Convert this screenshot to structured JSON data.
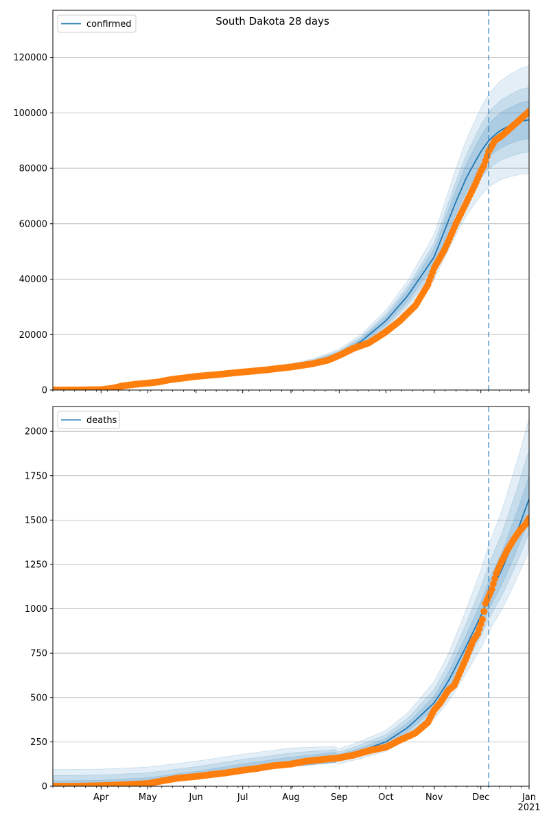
{
  "figure": {
    "title": "South Dakota 28 days"
  },
  "colors": {
    "model": "#1f77b4",
    "observed": "#ff7f0e",
    "band": "#1f77b4",
    "grid": "#b0b0b0"
  },
  "chart_data": [
    {
      "type": "line",
      "panel": "top",
      "title": "South Dakota 28 days",
      "legend": [
        "confirmed"
      ],
      "legend_position": "top-left",
      "grid": "horizontal",
      "xlim": [
        "2020-03-01",
        "2021-01-01"
      ],
      "ylim": [
        0,
        137000
      ],
      "yticks": [
        0,
        20000,
        40000,
        60000,
        80000,
        100000,
        120000
      ],
      "xticks": [
        {
          "date": "2020-04-01",
          "label": "Apr"
        },
        {
          "date": "2020-05-01",
          "label": "May"
        },
        {
          "date": "2020-06-01",
          "label": "Jun"
        },
        {
          "date": "2020-07-01",
          "label": "Jul"
        },
        {
          "date": "2020-08-01",
          "label": "Aug"
        },
        {
          "date": "2020-09-01",
          "label": "Sep"
        },
        {
          "date": "2020-10-01",
          "label": "Oct"
        },
        {
          "date": "2020-11-01",
          "label": "Nov"
        },
        {
          "date": "2020-12-01",
          "label": "Dec"
        },
        {
          "date": "2021-01-01",
          "label": "Jan\n2021"
        }
      ],
      "forecast_start": "2020-12-06",
      "series": [
        {
          "name": "confirmed",
          "role": "model",
          "x": [
            "2020-03-01",
            "2020-03-15",
            "2020-04-01",
            "2020-04-15",
            "2020-05-01",
            "2020-05-15",
            "2020-06-01",
            "2020-06-15",
            "2020-07-01",
            "2020-07-15",
            "2020-08-01",
            "2020-08-15",
            "2020-09-01",
            "2020-09-15",
            "2020-10-01",
            "2020-10-15",
            "2020-11-01",
            "2020-11-08",
            "2020-11-15",
            "2020-11-22",
            "2020-12-01",
            "2020-12-06",
            "2020-12-13",
            "2020-12-20",
            "2020-12-27",
            "2021-01-01"
          ],
          "y": [
            0,
            50,
            200,
            1500,
            2800,
            4000,
            5200,
            6000,
            6800,
            7500,
            8500,
            10000,
            13000,
            17500,
            25000,
            34000,
            48000,
            58000,
            68000,
            77000,
            86000,
            90000,
            93500,
            95500,
            97000,
            97500
          ],
          "bands": [
            {
              "lo_pct": [
                0.97,
                0.92,
                0.88,
                0.84,
                0.8
              ],
              "hi_pct": [
                1.03,
                1.08,
                1.12,
                1.16,
                1.2
              ]
            },
            {
              "lo_pct": [
                0.98,
                0.95,
                0.92,
                0.9,
                0.88
              ],
              "hi_pct": [
                1.02,
                1.05,
                1.08,
                1.1,
                1.12
              ]
            },
            {
              "lo_pct": [
                0.985,
                0.97,
                0.95,
                0.94,
                0.93
              ],
              "hi_pct": [
                1.015,
                1.03,
                1.05,
                1.06,
                1.07
              ]
            }
          ]
        },
        {
          "name": "observed",
          "role": "observed",
          "x": [
            "2020-03-01",
            "2020-03-15",
            "2020-04-01",
            "2020-04-08",
            "2020-04-15",
            "2020-04-22",
            "2020-05-01",
            "2020-05-08",
            "2020-05-15",
            "2020-05-22",
            "2020-06-01",
            "2020-06-15",
            "2020-07-01",
            "2020-07-15",
            "2020-08-01",
            "2020-08-15",
            "2020-08-25",
            "2020-09-01",
            "2020-09-10",
            "2020-09-20",
            "2020-10-01",
            "2020-10-10",
            "2020-10-20",
            "2020-10-28",
            "2020-11-01",
            "2020-11-08",
            "2020-11-15",
            "2020-11-22",
            "2020-11-28",
            "2020-12-01",
            "2020-12-03",
            "2020-12-06",
            "2020-12-10",
            "2020-12-15",
            "2020-12-20",
            "2020-12-25",
            "2021-01-01"
          ],
          "y": [
            0,
            20,
            150,
            600,
            1500,
            2000,
            2500,
            2900,
            3700,
            4200,
            4900,
            5600,
            6500,
            7200,
            8300,
            9500,
            10800,
            12500,
            15000,
            17000,
            21000,
            25000,
            30500,
            38000,
            44000,
            51000,
            60000,
            68000,
            75000,
            79000,
            81000,
            86000,
            90000,
            92000,
            94500,
            97000,
            100500
          ]
        }
      ]
    },
    {
      "type": "line",
      "panel": "bottom",
      "legend": [
        "deaths"
      ],
      "legend_position": "top-left",
      "grid": "horizontal",
      "xlim": [
        "2020-03-01",
        "2021-01-01"
      ],
      "ylim": [
        0,
        2140
      ],
      "yticks": [
        0,
        250,
        500,
        750,
        1000,
        1250,
        1500,
        1750,
        2000
      ],
      "forecast_start": "2020-12-06",
      "series": [
        {
          "name": "deaths",
          "role": "model",
          "x": [
            "2020-03-01",
            "2020-04-01",
            "2020-05-01",
            "2020-06-01",
            "2020-07-01",
            "2020-08-01",
            "2020-09-01",
            "2020-09-15",
            "2020-10-01",
            "2020-10-15",
            "2020-11-01",
            "2020-11-10",
            "2020-11-20",
            "2020-12-01",
            "2020-12-06",
            "2020-12-15",
            "2020-12-25",
            "2021-01-01"
          ],
          "y": [
            0,
            5,
            20,
            55,
            95,
            130,
            165,
            200,
            250,
            330,
            470,
            590,
            760,
            960,
            1070,
            1230,
            1450,
            1620
          ],
          "bands": [
            {
              "lo_pct": [
                0.0,
                0.6,
                0.75,
                0.8,
                0.82
              ],
              "hi_pct": [
                95,
                1.55,
                1.3,
                1.25,
                1.28
              ]
            },
            {
              "lo_pct": [
                0.0,
                0.75,
                0.85,
                0.88,
                0.88
              ],
              "hi_pct": [
                60,
                1.35,
                1.18,
                1.16,
                1.17
              ]
            },
            {
              "lo_pct": [
                0.0,
                0.87,
                0.92,
                0.93,
                0.93
              ],
              "hi_pct": [
                30,
                1.15,
                1.09,
                1.08,
                1.08
              ]
            }
          ]
        },
        {
          "name": "observed",
          "role": "observed",
          "x": [
            "2020-03-01",
            "2020-03-15",
            "2020-04-01",
            "2020-04-15",
            "2020-05-01",
            "2020-05-10",
            "2020-05-20",
            "2020-06-01",
            "2020-06-10",
            "2020-06-20",
            "2020-07-01",
            "2020-07-10",
            "2020-07-20",
            "2020-08-01",
            "2020-08-10",
            "2020-08-20",
            "2020-09-01",
            "2020-09-10",
            "2020-09-20",
            "2020-10-01",
            "2020-10-10",
            "2020-10-20",
            "2020-10-28",
            "2020-11-01",
            "2020-11-05",
            "2020-11-10",
            "2020-11-14",
            "2020-11-18",
            "2020-11-22",
            "2020-11-26",
            "2020-11-29",
            "2020-12-02",
            "2020-12-04",
            "2020-12-08",
            "2020-12-11",
            "2020-12-14",
            "2020-12-18",
            "2020-12-22",
            "2020-12-26",
            "2020-12-30",
            "2021-01-01"
          ],
          "y": [
            0,
            0,
            3,
            8,
            15,
            30,
            45,
            55,
            65,
            75,
            90,
            100,
            115,
            125,
            140,
            150,
            160,
            175,
            200,
            220,
            260,
            300,
            360,
            430,
            470,
            540,
            570,
            650,
            730,
            820,
            860,
            940,
            1030,
            1110,
            1200,
            1260,
            1330,
            1390,
            1440,
            1480,
            1510
          ]
        }
      ]
    }
  ]
}
